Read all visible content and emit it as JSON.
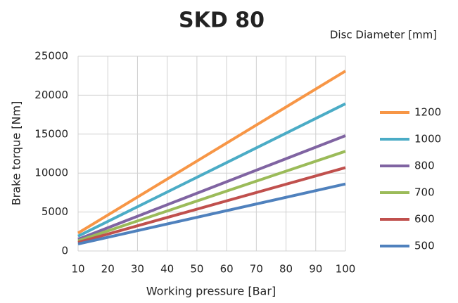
{
  "chart_data": {
    "type": "line",
    "title": "SKD 80",
    "xlabel": "Working pressure [Bar]",
    "ylabel": "Brake torque [Nm]",
    "legend_title": "Disc Diameter [mm]",
    "x": [
      10,
      100
    ],
    "series": [
      {
        "name": "1200",
        "color": "#f79646",
        "values": [
          2300,
          23100
        ]
      },
      {
        "name": "1000",
        "color": "#4bacc6",
        "values": [
          1900,
          18900
        ]
      },
      {
        "name": "800",
        "color": "#8064a2",
        "values": [
          1500,
          14800
        ]
      },
      {
        "name": "700",
        "color": "#9bbb59",
        "values": [
          1300,
          12800
        ]
      },
      {
        "name": "600",
        "color": "#c0504d",
        "values": [
          1100,
          10700
        ]
      },
      {
        "name": "500",
        "color": "#4f81bd",
        "values": [
          900,
          8600
        ]
      }
    ],
    "xlim": [
      10,
      100
    ],
    "xticks": [
      10,
      20,
      30,
      40,
      50,
      60,
      70,
      80,
      90,
      100
    ],
    "ylim": [
      0,
      25000
    ],
    "yticks": [
      0,
      5000,
      10000,
      15000,
      20000,
      25000
    ],
    "grid": true,
    "legend": "right"
  }
}
